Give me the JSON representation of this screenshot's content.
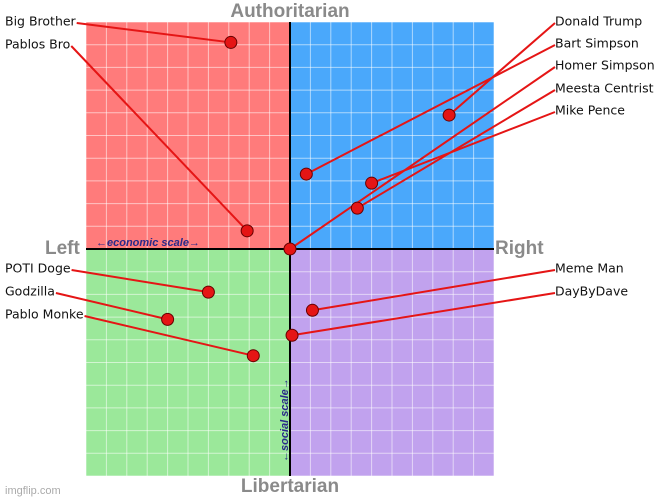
{
  "chart_data": {
    "type": "scatter",
    "top_label": "Authoritarian",
    "bottom_label": "Libertarian",
    "left_label": "Left",
    "right_label": "Right",
    "x_scale_label": "←economic scale→",
    "y_scale_label": "←social scale→",
    "watermark": "imgflip.com",
    "xlim": [
      -10,
      10
    ],
    "ylim": [
      -10,
      10
    ],
    "xticks": [
      -10,
      -9,
      -8,
      -7,
      -6,
      -5,
      -4,
      -3,
      -2,
      -1,
      0,
      1,
      2,
      3,
      4,
      5,
      6,
      7,
      8,
      9,
      10
    ],
    "yticks": [
      -10,
      -9,
      -8,
      -7,
      -6,
      -5,
      -4,
      -3,
      -2,
      -1,
      0,
      1,
      2,
      3,
      4,
      5,
      6,
      7,
      8,
      9,
      10
    ],
    "grid": true,
    "quadrant_colors": {
      "top_left": "#ff7b7b",
      "top_right": "#4aa8fb",
      "bottom_left": "#9be89a",
      "bottom_right": "#c1a2ee"
    },
    "color": "#e51515",
    "points": {
      "names": [
        "Big Brother",
        "Pablos Bro",
        "Donald Trump",
        "Bart Simpson",
        "Homer Simpson",
        "Meesta Centrist",
        "Mike Pence",
        "POTI Doge",
        "Godzilla",
        "Pablo Monke",
        "Meme Man",
        "DayByDave"
      ],
      "x": [
        -2.9,
        -2.1,
        7.8,
        0.8,
        0,
        3.3,
        4.0,
        -4.0,
        -6.0,
        -1.8,
        1.1,
        0.1
      ],
      "y": [
        9.1,
        0.8,
        5.9,
        3.3,
        0,
        1.8,
        2.9,
        -1.9,
        -3.1,
        -4.7,
        -2.7,
        -3.8
      ]
    }
  }
}
